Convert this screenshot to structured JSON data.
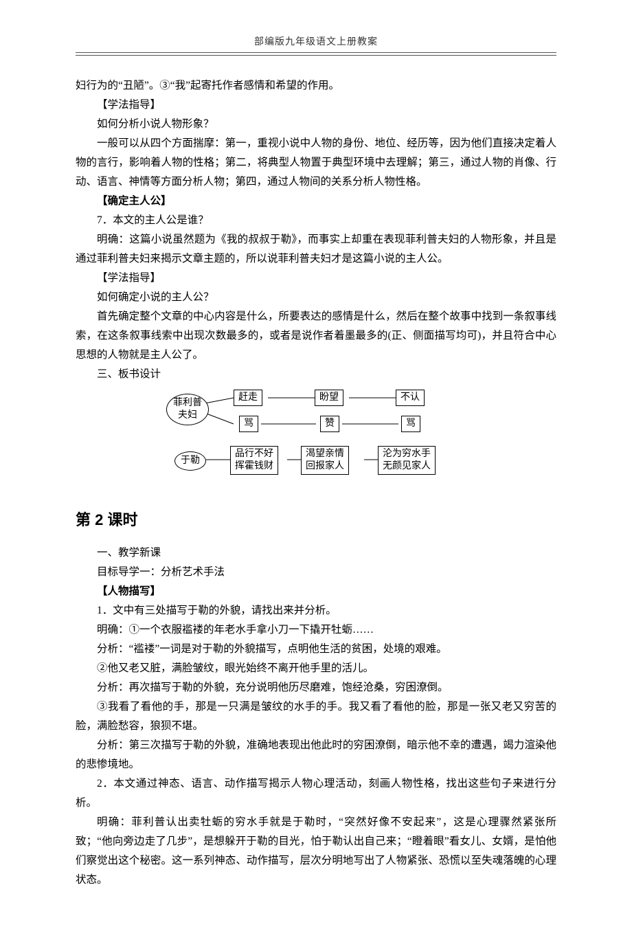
{
  "header": {
    "title": "部编版九年级语文上册教案"
  },
  "body": {
    "p1": "妇行为的“丑陋”。③“我”起寄托作者感情和希望的作用。",
    "p2": "【学法指导】",
    "p3": "如何分析小说人物形象？",
    "p4": "一般可以从四个方面揣摩：第一，重视小说中人物的身份、地位、经历等，因为他们直接决定着人物的言行，影响着人物的性格；第二，将典型人物置于典型环境中去理解；第三，通过人物的肖像、行动、语言、神情等方面分析人物；第四，通过人物间的关系分析人物性格。",
    "p5": "【确定主人公】",
    "p6": "7．本文的主人公是谁？",
    "p7": "明确：这篇小说虽然题为《我的叔叔于勒》，而事实上却重在表现菲利普夫妇的人物形象，并且是通过菲利普夫妇来揭示文章主题的，所以说菲利普夫妇才是这篇小说的主人公。",
    "p8": "【学法指导】",
    "p9": "如何确定小说的主人公？",
    "p10": "首先确定整个文章的中心内容是什么，所要表达的感情是什么，然后在整个故事中找到一条叙事线索，在这条叙事线索中出现次数最多的，或者是说作者着墨最多的(正、侧面描写均可)，并且符合中心思想的人物就是主人公了。",
    "p11": "三、板书设计"
  },
  "diagram": {
    "oval1": "菲利普\n夫妇",
    "oval2": "于勒",
    "row1": {
      "n1": "赶走",
      "n2": "盼望",
      "n3": "不认"
    },
    "row2": {
      "n1": "骂",
      "n2": "赞",
      "n3": "骂"
    },
    "row3": {
      "n1": "品行不好\n挥霍钱财",
      "n2": "渴望亲情\n回报家人",
      "n3": "沦为穷水手\n无颜见家人"
    },
    "line_color": "#000000"
  },
  "lesson": {
    "title": "第 2 课时",
    "p1": "一、教学新课",
    "p2": "目标导学一：分析艺术手法",
    "p3": "【人物描写】",
    "p4": "1．文中有三处描写于勒的外貌，请找出来并分析。",
    "p5": "明确：①一个衣服褴褛的年老水手拿小刀一下撬开牡蛎……",
    "p6": "分析：“褴褛”一词是对于勒的外貌描写，点明他生活的贫困，处境的艰难。",
    "p7": "②他又老又脏，满脸皱纹，眼光始终不离开他手里的活儿。",
    "p8": "分析：再次描写于勒的外貌，充分说明他历尽磨难，饱经沧桑，穷困潦倒。",
    "p9": "③我看了看他的手，那是一只满是皱纹的水手的手。我又看了看他的脸，那是一张又老又穷苦的脸，满脸愁容，狼狈不堪。",
    "p10": "分析：第三次描写于勒的外貌，准确地表现出他此时的穷困潦倒，暗示他不幸的遭遇，竭力渲染他的悲惨境地。",
    "p11": "2．本文通过神态、语言、动作描写揭示人物心理活动，刻画人物性格，找出这些句子来进行分析。",
    "p12": "明确：菲利普认出卖牡蛎的穷水手就是于勒时，“突然好像不安起来”，这是心理骤然紧张所致；“他向旁边走了几步”，是想躲开于勒的目光，怕于勒认出自己来；“瞪着眼”看女儿、女婿，是怕他们察觉出这个秘密。这一系列神态、动作描写，层次分明地写出了人物紧张、恐慌以至失魂落魄的心理状态。"
  }
}
